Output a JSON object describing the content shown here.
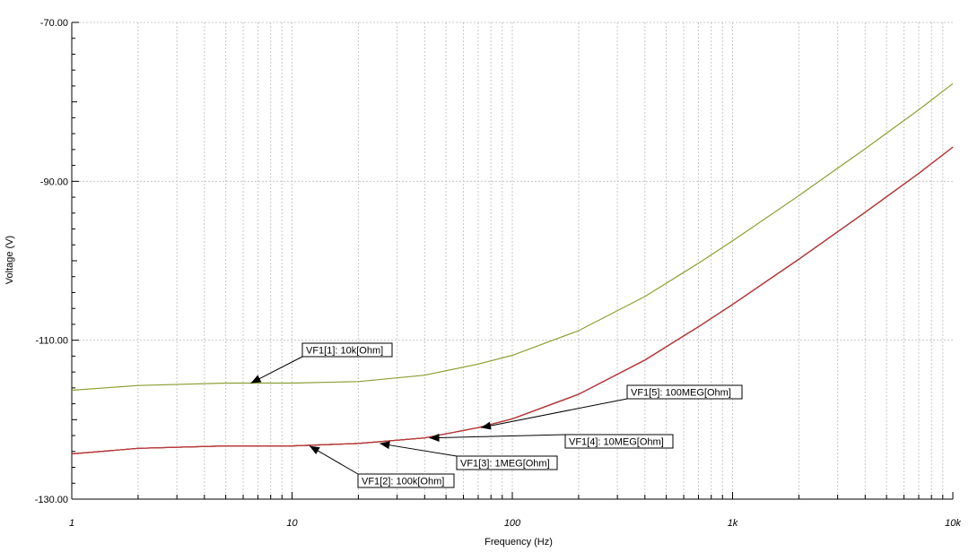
{
  "chart_data": {
    "type": "line",
    "title": "",
    "xlabel": "Frequency (Hz)",
    "ylabel": "Voltage (V)",
    "xscale": "log",
    "xlim": [
      1,
      10000
    ],
    "ylim": [
      -130,
      -70
    ],
    "grid": true,
    "x_tick_labels": [
      "1",
      "10",
      "100",
      "1k",
      "10k"
    ],
    "y_tick_labels": [
      "-70.00",
      "-90.00",
      "-110.00",
      "-130.00"
    ],
    "series": [
      {
        "name": "VF1[1]: 10k[Ohm]",
        "color": "#8aa032",
        "x": [
          1,
          2,
          5,
          10,
          20,
          40,
          70,
          100,
          200,
          400,
          700,
          1000,
          2000,
          4000,
          7000,
          10000
        ],
        "y": [
          -116.3,
          -115.7,
          -115.4,
          -115.4,
          -115.2,
          -114.4,
          -113.0,
          -111.9,
          -108.8,
          -104.5,
          -100.3,
          -97.5,
          -91.8,
          -85.9,
          -81.0,
          -77.7
        ]
      },
      {
        "name": "VF1[2]: 100k[Ohm]",
        "color": "#b53a3a",
        "x": [
          1,
          2,
          5,
          10,
          20,
          40,
          70,
          100,
          200,
          400,
          700,
          1000,
          2000,
          4000,
          7000,
          10000
        ],
        "y": [
          -124.3,
          -123.6,
          -123.3,
          -123.3,
          -123.0,
          -122.3,
          -121.0,
          -119.9,
          -116.8,
          -112.5,
          -108.3,
          -105.5,
          -99.8,
          -93.9,
          -89.0,
          -85.7
        ]
      },
      {
        "name": "VF1[3]: 1MEG[Ohm]",
        "color": "#b53a3a",
        "x": [
          1,
          2,
          5,
          10,
          20,
          40,
          70,
          100,
          200,
          400,
          700,
          1000,
          2000,
          4000,
          7000,
          10000
        ],
        "y": [
          -124.3,
          -123.6,
          -123.3,
          -123.3,
          -123.0,
          -122.3,
          -121.0,
          -119.9,
          -116.8,
          -112.5,
          -108.3,
          -105.5,
          -99.8,
          -93.9,
          -89.0,
          -85.7
        ]
      },
      {
        "name": "VF1[4]: 10MEG[Ohm]",
        "color": "#b53a3a",
        "x": [
          1,
          2,
          5,
          10,
          20,
          40,
          70,
          100,
          200,
          400,
          700,
          1000,
          2000,
          4000,
          7000,
          10000
        ],
        "y": [
          -124.3,
          -123.6,
          -123.3,
          -123.3,
          -123.0,
          -122.3,
          -121.0,
          -119.9,
          -116.8,
          -112.5,
          -108.3,
          -105.5,
          -99.8,
          -93.9,
          -89.0,
          -85.7
        ]
      },
      {
        "name": "VF1[5]: 100MEG[Ohm]",
        "color": "#b53a3a",
        "x": [
          1,
          2,
          5,
          10,
          20,
          40,
          70,
          100,
          200,
          400,
          700,
          1000,
          2000,
          4000,
          7000,
          10000
        ],
        "y": [
          -124.3,
          -123.6,
          -123.3,
          -123.3,
          -123.0,
          -122.3,
          -121.0,
          -119.9,
          -116.8,
          -112.5,
          -108.3,
          -105.5,
          -99.8,
          -93.9,
          -89.0,
          -85.7
        ]
      }
    ],
    "annotations": [
      {
        "text": "VF1[1]: 10k[Ohm]",
        "target": [
          6.5,
          -115.4
        ]
      },
      {
        "text": "VF1[2]: 100k[Ohm]",
        "target": [
          12,
          -123.3
        ]
      },
      {
        "text": "VF1[3]: 1MEG[Ohm]",
        "target": [
          25,
          -123.0
        ]
      },
      {
        "text": "VF1[4]: 10MEG[Ohm]",
        "target": [
          42,
          -122.3
        ]
      },
      {
        "text": "VF1[5]: 100MEG[Ohm]",
        "target": [
          72,
          -121.0
        ]
      }
    ]
  }
}
